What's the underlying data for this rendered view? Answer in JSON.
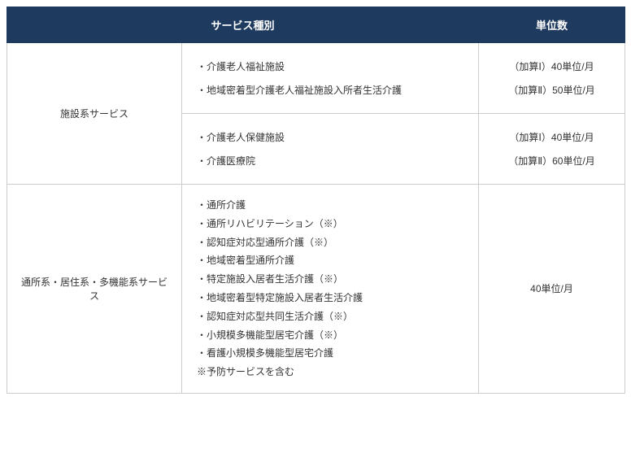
{
  "header": {
    "col1": "サービス種別",
    "col2": "単位数"
  },
  "row1": {
    "category": "施設系サービス",
    "group1": {
      "services": [
        "・介護老人福祉施設",
        "・地域密着型介護老人福祉施設入所者生活介護"
      ],
      "units": [
        "（加算Ⅰ）40単位/月",
        "（加算Ⅱ）50単位/月"
      ]
    },
    "group2": {
      "services": [
        "・介護老人保健施設",
        "・介護医療院"
      ],
      "units": [
        "（加算Ⅰ）40単位/月",
        "（加算Ⅱ）60単位/月"
      ]
    }
  },
  "row2": {
    "category": "通所系・居住系・多機能系サービス",
    "services": [
      "・通所介護",
      "・通所リハビリテーション（※）",
      "・認知症対応型通所介護（※）",
      "・地域密着型通所介護",
      "・特定施設入居者生活介護（※）",
      "・地域密着型特定施設入居者生活介護",
      "・認知症対応型共同生活介護（※）",
      "・小規模多機能型居宅介護（※）",
      "・看護小規模多機能型居宅介護",
      "※予防サービスを含む"
    ],
    "unit": "40単位/月"
  },
  "colors": {
    "header_bg": "#1f3a5f",
    "header_text": "#ffffff",
    "border": "#cccccc",
    "text": "#333333",
    "background": "#ffffff"
  }
}
